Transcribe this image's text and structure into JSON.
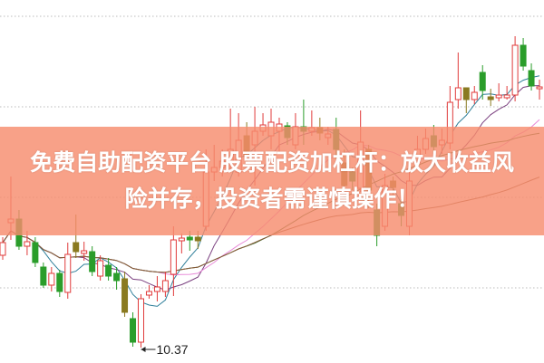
{
  "headline": {
    "line1": "免费自助配资平台 股票配资加杠杆：放大收益风",
    "line2": "险并存，投资者需谨慎操作！"
  },
  "colors": {
    "up": "#e03b3b",
    "down": "#2a9d2a",
    "down_alt": "#8a7a20",
    "grid": "#bbbbbb",
    "banner": "#f78c6e",
    "ma": [
      "#2f7f9a",
      "#7a3f7f",
      "#e88ad8",
      "#3d6b2a",
      "#8a5a3a"
    ]
  },
  "chart_data": {
    "type": "candlestick",
    "title": "",
    "grid": true,
    "annotations": [
      {
        "label": "10.37",
        "type": "min-low"
      }
    ],
    "moving_averages": [
      5,
      10,
      20,
      30,
      60
    ],
    "ohlc": [
      [
        11.39,
        11.59,
        11.34,
        11.53
      ],
      [
        11.75,
        12.26,
        11.56,
        11.79
      ],
      [
        11.79,
        11.89,
        11.45,
        11.49
      ],
      [
        11.49,
        11.66,
        11.39,
        11.54
      ],
      [
        11.53,
        11.59,
        11.26,
        11.31
      ],
      [
        11.26,
        11.31,
        11.03,
        11.06
      ],
      [
        11.06,
        11.26,
        10.99,
        11.19
      ],
      [
        11.19,
        11.23,
        10.93,
        10.99
      ],
      [
        10.98,
        11.53,
        10.91,
        11.4
      ],
      [
        11.53,
        11.84,
        11.36,
        11.43
      ],
      [
        11.41,
        11.54,
        11.33,
        11.44
      ],
      [
        11.43,
        11.49,
        11.16,
        11.21
      ],
      [
        11.16,
        11.39,
        11.11,
        11.33
      ],
      [
        11.28,
        11.36,
        11.11,
        11.16
      ],
      [
        11.19,
        11.26,
        11.01,
        11.11
      ],
      [
        11.13,
        11.21,
        10.71,
        10.76
      ],
      [
        10.69,
        10.76,
        10.38,
        10.43
      ],
      [
        10.43,
        10.96,
        10.37,
        10.91
      ],
      [
        10.95,
        11.06,
        10.91,
        10.99
      ],
      [
        10.99,
        11.16,
        10.88,
        11.04
      ],
      [
        10.99,
        11.21,
        10.93,
        11.11
      ],
      [
        11.18,
        11.71,
        10.94,
        11.56
      ],
      [
        11.55,
        11.63,
        11.41,
        11.58
      ],
      [
        11.59,
        11.66,
        11.44,
        11.56
      ],
      [
        11.59,
        11.66,
        11.46,
        11.55
      ],
      [
        11.71,
        12.56,
        11.66,
        12.31
      ],
      [
        12.31,
        12.61,
        12.21,
        12.36
      ],
      [
        12.36,
        12.56,
        12.26,
        12.43
      ],
      [
        12.41,
        13.01,
        12.31,
        12.56
      ],
      [
        12.31,
        12.96,
        12.26,
        12.66
      ],
      [
        12.71,
        12.86,
        12.41,
        12.48
      ],
      [
        12.61,
        13.03,
        12.16,
        12.76
      ],
      [
        12.76,
        12.96,
        12.71,
        12.83
      ],
      [
        12.71,
        13.01,
        12.56,
        12.86
      ],
      [
        12.76,
        12.91,
        12.51,
        12.84
      ],
      [
        12.82,
        12.86,
        12.61,
        12.69
      ],
      [
        12.61,
        12.96,
        12.56,
        12.81
      ],
      [
        12.81,
        13.11,
        12.61,
        12.76
      ],
      [
        12.76,
        12.99,
        12.71,
        12.8
      ],
      [
        12.8,
        12.91,
        12.66,
        12.74
      ],
      [
        12.69,
        12.81,
        12.61,
        12.73
      ],
      [
        12.78,
        12.91,
        12.46,
        12.56
      ],
      [
        12.41,
        12.56,
        12.11,
        12.16
      ],
      [
        12.31,
        12.36,
        12.11,
        12.21
      ],
      [
        12.13,
        12.99,
        12.09,
        12.64
      ],
      [
        12.56,
        12.61,
        11.91,
        12.11
      ],
      [
        11.89,
        11.96,
        11.49,
        11.61
      ],
      [
        11.71,
        12.29,
        11.66,
        12.16
      ],
      [
        12.21,
        12.26,
        12.06,
        12.14
      ],
      [
        11.96,
        12.01,
        11.71,
        11.83
      ],
      [
        11.71,
        12.31,
        11.61,
        12.21
      ],
      [
        12.41,
        12.71,
        12.36,
        12.56
      ],
      [
        12.56,
        12.79,
        12.51,
        12.68
      ],
      [
        12.71,
        12.83,
        12.51,
        12.59
      ],
      [
        12.61,
        12.79,
        12.51,
        12.66
      ],
      [
        12.63,
        13.26,
        12.56,
        13.08
      ],
      [
        13.11,
        13.63,
        13.01,
        13.24
      ],
      [
        13.24,
        13.24,
        12.96,
        13.11
      ],
      [
        13.11,
        13.26,
        13.06,
        13.19
      ],
      [
        13.41,
        13.49,
        13.11,
        13.21
      ],
      [
        13.14,
        13.23,
        13.04,
        13.11
      ],
      [
        13.13,
        13.29,
        13.09,
        13.16
      ],
      [
        13.13,
        13.26,
        13.11,
        13.16
      ],
      [
        13.16,
        13.81,
        13.09,
        13.71
      ],
      [
        13.71,
        13.79,
        13.43,
        13.48
      ],
      [
        13.43,
        13.51,
        13.21,
        13.26
      ],
      [
        13.23,
        13.33,
        13.11,
        13.25
      ]
    ],
    "min_label": "10.37"
  }
}
